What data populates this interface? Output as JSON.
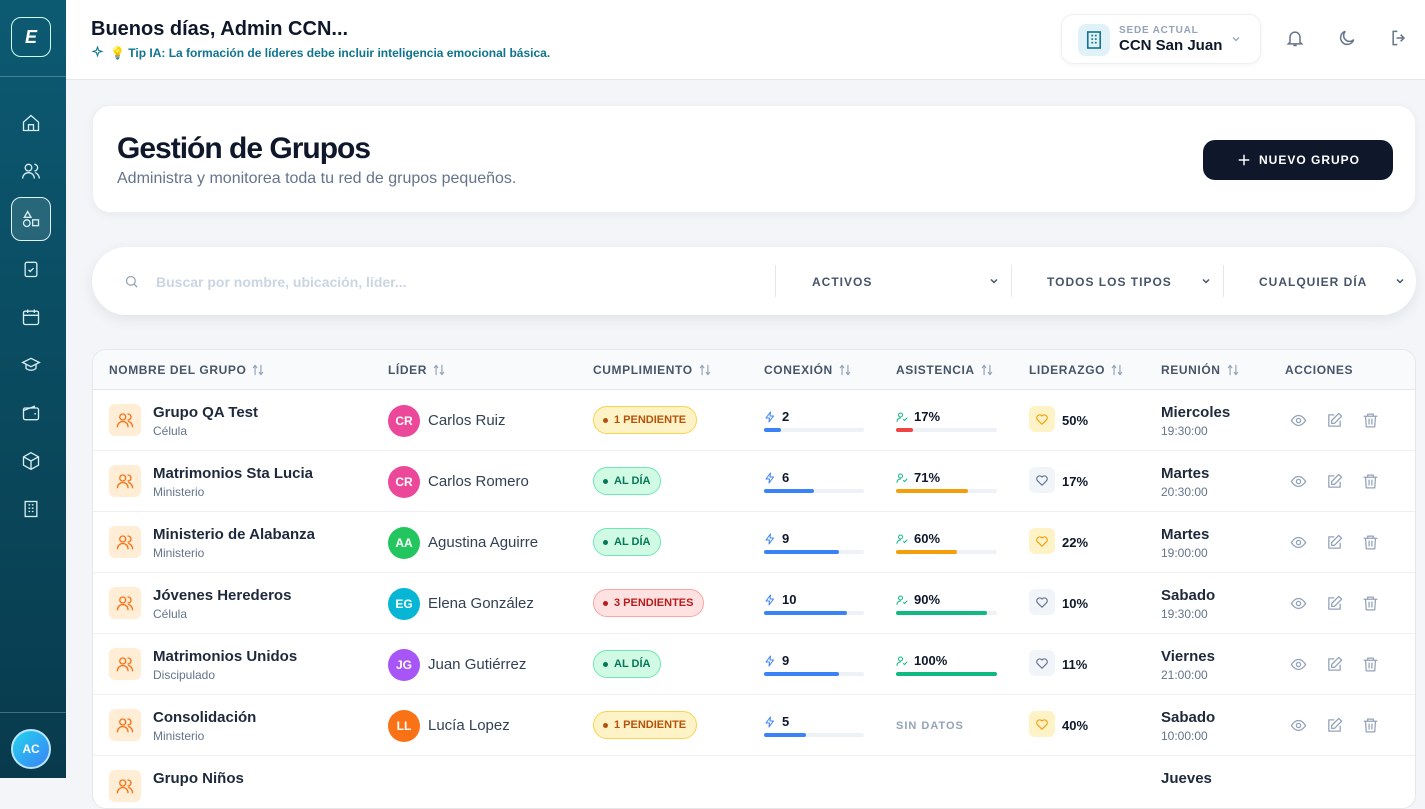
{
  "sidebar": {
    "logo": "E",
    "avatar": "AC"
  },
  "header": {
    "greeting": "Buenos días, Admin CCN...",
    "tip": "💡 Tip IA: La formación de líderes debe incluir inteligencia emocional básica.",
    "sede_label": "SEDE ACTUAL",
    "sede": "CCN San Juan"
  },
  "page": {
    "title": "Gestión de Grupos",
    "subtitle": "Administra y monitorea toda tu red de grupos pequeños.",
    "button": "NUEVO GRUPO"
  },
  "filters": {
    "search_placeholder": "Buscar por nombre, ubicación, líder...",
    "status": "ACTIVOS",
    "type": "TODOS LOS TIPOS",
    "day": "CUALQUIER DÍA"
  },
  "table": {
    "columns": [
      "NOMBRE DEL GRUPO",
      "LÍDER",
      "CUMPLIMIENTO",
      "CONEXIÓN",
      "ASISTENCIA",
      "LIDERAZGO",
      "REUNIÓN",
      "ACCIONES"
    ],
    "rows": [
      {
        "name": "Grupo QA Test",
        "type": "Célula",
        "leader": {
          "initials": "CR",
          "name": "Carlos Ruiz",
          "color": "#ec4899"
        },
        "badge": {
          "text": "1 PENDIENTE",
          "color": "#b45309",
          "bg": "#fef3c7",
          "border": "#fcd34d"
        },
        "conexion": 2,
        "asistencia": {
          "value": 17,
          "label": "17%",
          "color": "#ef4444"
        },
        "liderazgo": {
          "value": 50,
          "label": "50%"
        },
        "day": "Miercoles",
        "time": "19:30:00"
      },
      {
        "name": "Matrimonios Sta Lucia",
        "type": "Ministerio",
        "leader": {
          "initials": "CR",
          "name": "Carlos Romero",
          "color": "#ec4899"
        },
        "badge": {
          "text": "AL DÍA",
          "color": "#047857",
          "bg": "#d1fae5",
          "border": "#6ee7b7"
        },
        "conexion": 6,
        "asistencia": {
          "value": 71,
          "label": "71%",
          "color": "#f59e0b"
        },
        "liderazgo": {
          "value": 17,
          "label": "17%"
        },
        "day": "Martes",
        "time": "20:30:00"
      },
      {
        "name": "Ministerio de Alabanza",
        "type": "Ministerio",
        "leader": {
          "initials": "AA",
          "name": "Agustina Aguirre",
          "color": "#22c55e"
        },
        "badge": {
          "text": "AL DÍA",
          "color": "#047857",
          "bg": "#d1fae5",
          "border": "#6ee7b7"
        },
        "conexion": 9,
        "asistencia": {
          "value": 60,
          "label": "60%",
          "color": "#f59e0b"
        },
        "liderazgo": {
          "value": 22,
          "label": "22%"
        },
        "day": "Martes",
        "time": "19:00:00"
      },
      {
        "name": "Jóvenes Herederos",
        "type": "Célula",
        "leader": {
          "initials": "EG",
          "name": "Elena González",
          "color": "#06b6d4"
        },
        "badge": {
          "text": "3 PENDIENTES",
          "color": "#b91c1c",
          "bg": "#fee2e2",
          "border": "#fca5a5"
        },
        "conexion": 10,
        "asistencia": {
          "value": 90,
          "label": "90%",
          "color": "#10b981"
        },
        "liderazgo": {
          "value": 10,
          "label": "10%"
        },
        "day": "Sabado",
        "time": "19:30:00"
      },
      {
        "name": "Matrimonios Unidos",
        "type": "Discipulado",
        "leader": {
          "initials": "JG",
          "name": "Juan Gutiérrez",
          "color": "#a855f7"
        },
        "badge": {
          "text": "AL DÍA",
          "color": "#047857",
          "bg": "#d1fae5",
          "border": "#6ee7b7"
        },
        "conexion": 9,
        "asistencia": {
          "value": 100,
          "label": "100%",
          "color": "#10b981"
        },
        "liderazgo": {
          "value": 11,
          "label": "11%"
        },
        "day": "Viernes",
        "time": "21:00:00"
      },
      {
        "name": "Consolidación",
        "type": "Ministerio",
        "leader": {
          "initials": "LL",
          "name": "Lucía Lopez",
          "color": "#f97316"
        },
        "badge": {
          "text": "1 PENDIENTE",
          "color": "#b45309",
          "bg": "#fef3c7",
          "border": "#fcd34d"
        },
        "conexion": 5,
        "asistencia": {
          "value": null,
          "label": "SIN DATOS"
        },
        "liderazgo": {
          "value": 40,
          "label": "40%"
        },
        "day": "Sabado",
        "time": "10:00:00"
      },
      {
        "name": "Grupo Niños",
        "day": "Jueves"
      }
    ]
  }
}
